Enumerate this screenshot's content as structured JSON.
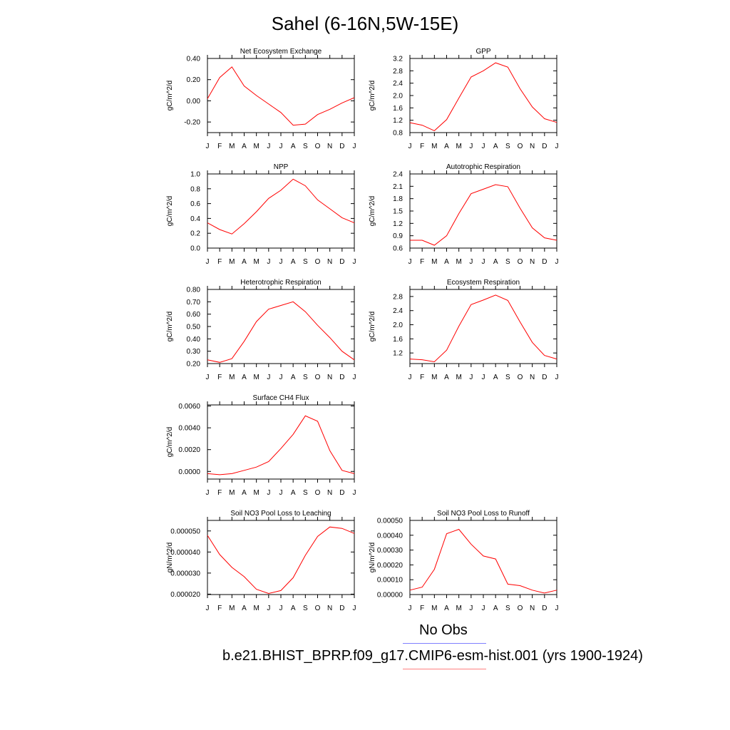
{
  "title": "Sahel (6-16N,5W-15E)",
  "legend": {
    "obs_label": "No Obs",
    "model_label": "b.e21.BHIST_BPRP.f09_g17.CMIP6-esm-hist.001 (yrs 1900-1924)",
    "obs_color": "#8080ff",
    "model_color": "#ff8080"
  },
  "series_color": "#ff0000",
  "chart_data": [
    {
      "type": "line",
      "title": "Net Ecosystem Exchange",
      "ylabel": "gC/m^2/d",
      "xlabel": "",
      "categories": [
        "J",
        "F",
        "M",
        "A",
        "M",
        "J",
        "J",
        "A",
        "S",
        "O",
        "N",
        "D",
        "J"
      ],
      "values": [
        0.02,
        0.22,
        0.32,
        0.14,
        0.05,
        -0.03,
        -0.11,
        -0.23,
        -0.22,
        -0.13,
        -0.08,
        -0.02,
        0.03
      ],
      "ylim": [
        -0.3,
        0.4
      ],
      "yticks": [
        "0.40",
        "0.20",
        "0.00",
        "-0.20"
      ],
      "ytick_values": [
        0.4,
        0.2,
        0.0,
        -0.2
      ],
      "grid": false
    },
    {
      "type": "line",
      "title": "GPP",
      "ylabel": "gC/m^2/d",
      "xlabel": "",
      "categories": [
        "J",
        "F",
        "M",
        "A",
        "M",
        "J",
        "J",
        "A",
        "S",
        "O",
        "N",
        "D",
        "J"
      ],
      "values": [
        1.12,
        1.04,
        0.86,
        1.22,
        1.92,
        2.6,
        2.8,
        3.06,
        2.92,
        2.22,
        1.63,
        1.25,
        1.13
      ],
      "ylim": [
        0.8,
        3.2
      ],
      "yticks": [
        "3.2",
        "2.8",
        "2.4",
        "2.0",
        "1.6",
        "1.2",
        "0.8"
      ],
      "ytick_values": [
        3.2,
        2.8,
        2.4,
        2.0,
        1.6,
        1.2,
        0.8
      ],
      "grid": false
    },
    {
      "type": "line",
      "title": "NPP",
      "ylabel": "gC/m^2/d",
      "xlabel": "",
      "categories": [
        "J",
        "F",
        "M",
        "A",
        "M",
        "J",
        "J",
        "A",
        "S",
        "O",
        "N",
        "D",
        "J"
      ],
      "values": [
        0.34,
        0.25,
        0.19,
        0.33,
        0.49,
        0.67,
        0.78,
        0.93,
        0.84,
        0.65,
        0.53,
        0.41,
        0.34
      ],
      "ylim": [
        0.0,
        1.0
      ],
      "yticks": [
        "1.0",
        "0.8",
        "0.6",
        "0.4",
        "0.2",
        "0.0"
      ],
      "ytick_values": [
        1.0,
        0.8,
        0.6,
        0.4,
        0.2,
        0.0
      ],
      "grid": false
    },
    {
      "type": "line",
      "title": "Autotrophic Respiration",
      "ylabel": "gC/m^2/d",
      "xlabel": "",
      "categories": [
        "J",
        "F",
        "M",
        "A",
        "M",
        "J",
        "J",
        "A",
        "S",
        "O",
        "N",
        "D",
        "J"
      ],
      "values": [
        0.79,
        0.79,
        0.67,
        0.9,
        1.44,
        1.92,
        2.03,
        2.14,
        2.09,
        1.57,
        1.09,
        0.85,
        0.79
      ],
      "ylim": [
        0.6,
        2.4
      ],
      "yticks": [
        "2.4",
        "2.1",
        "1.8",
        "1.5",
        "1.2",
        "0.9",
        "0.6"
      ],
      "ytick_values": [
        2.4,
        2.1,
        1.8,
        1.5,
        1.2,
        0.9,
        0.6
      ],
      "grid": false
    },
    {
      "type": "line",
      "title": "Heterotrophic Respiration",
      "ylabel": "gC/m^2/d",
      "xlabel": "",
      "categories": [
        "J",
        "F",
        "M",
        "A",
        "M",
        "J",
        "J",
        "A",
        "S",
        "O",
        "N",
        "D",
        "J"
      ],
      "values": [
        0.23,
        0.21,
        0.24,
        0.38,
        0.54,
        0.64,
        0.67,
        0.7,
        0.62,
        0.51,
        0.41,
        0.3,
        0.23
      ],
      "ylim": [
        0.2,
        0.8
      ],
      "yticks": [
        "0.80",
        "0.70",
        "0.60",
        "0.50",
        "0.40",
        "0.30",
        "0.20"
      ],
      "ytick_values": [
        0.8,
        0.7,
        0.6,
        0.5,
        0.4,
        0.3,
        0.2
      ],
      "grid": false
    },
    {
      "type": "line",
      "title": "Ecosystem Respiration",
      "ylabel": "gC/m^2/d",
      "xlabel": "",
      "categories": [
        "J",
        "F",
        "M",
        "A",
        "M",
        "J",
        "J",
        "A",
        "S",
        "O",
        "N",
        "D",
        "J"
      ],
      "values": [
        1.03,
        1.01,
        0.95,
        1.28,
        1.96,
        2.57,
        2.7,
        2.84,
        2.69,
        2.08,
        1.5,
        1.13,
        1.03
      ],
      "ylim": [
        0.9,
        3.0
      ],
      "yticks": [
        "2.8",
        "2.4",
        "2.0",
        "1.6",
        "1.2"
      ],
      "ytick_values": [
        2.8,
        2.4,
        2.0,
        1.6,
        1.2
      ],
      "grid": false
    },
    {
      "type": "line",
      "title": "Surface CH4 Flux",
      "ylabel": "gC/m^2/d",
      "xlabel": "",
      "categories": [
        "J",
        "F",
        "M",
        "A",
        "M",
        "J",
        "J",
        "A",
        "S",
        "O",
        "N",
        "D",
        "J"
      ],
      "values": [
        -0.0002,
        -0.0003,
        -0.0002,
        0.0001,
        0.0004,
        0.0009,
        0.0021,
        0.0034,
        0.0051,
        0.0046,
        0.0019,
        0.0001,
        -0.0002
      ],
      "ylim": [
        -0.0007,
        0.0061
      ],
      "yticks": [
        "0.0060",
        "0.0040",
        "0.0020",
        "0.0000"
      ],
      "ytick_values": [
        0.006,
        0.004,
        0.002,
        0.0
      ],
      "grid": false
    },
    {
      "type": "line",
      "title": "Soil NO3 Pool Loss to Leaching",
      "ylabel": "gN/m^2/d",
      "xlabel": "",
      "categories": [
        "J",
        "F",
        "M",
        "A",
        "M",
        "J",
        "J",
        "A",
        "S",
        "O",
        "N",
        "D",
        "J"
      ],
      "values": [
        4.79e-05,
        3.88e-05,
        3.27e-05,
        2.83e-05,
        2.23e-05,
        2.03e-05,
        2.17e-05,
        2.78e-05,
        3.84e-05,
        4.74e-05,
        5.19e-05,
        5.12e-05,
        4.88e-05
      ],
      "ylim": [
        1.98e-05,
        5.5e-05
      ],
      "yticks": [
        "0.000050",
        "0.000040",
        "0.000030",
        "0.000020"
      ],
      "ytick_values": [
        5e-05,
        4e-05,
        3e-05,
        2e-05
      ],
      "grid": false
    },
    {
      "type": "line",
      "title": "Soil NO3 Pool Loss to Runoff",
      "ylabel": "gN/m^2/d",
      "xlabel": "",
      "categories": [
        "J",
        "F",
        "M",
        "A",
        "M",
        "J",
        "J",
        "A",
        "S",
        "O",
        "N",
        "D",
        "J"
      ],
      "values": [
        3e-05,
        5e-05,
        0.00017,
        0.00041,
        0.00044,
        0.00034,
        0.00026,
        0.00024,
        7e-05,
        6e-05,
        3e-05,
        1e-05,
        3e-05
      ],
      "ylim": [
        0.0,
        0.0005
      ],
      "yticks": [
        "0.00050",
        "0.00040",
        "0.00030",
        "0.00020",
        "0.00010",
        "0.00000"
      ],
      "ytick_values": [
        0.0005,
        0.0004,
        0.0003,
        0.0002,
        0.0001,
        0.0
      ],
      "grid": false
    }
  ]
}
